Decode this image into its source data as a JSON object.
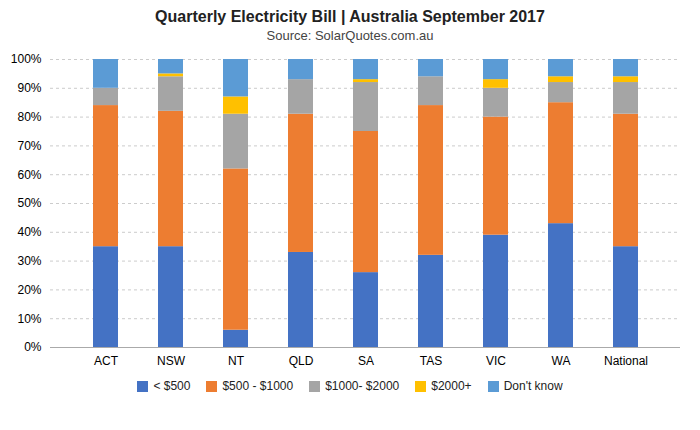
{
  "chart_data": {
    "type": "bar",
    "title": "Quarterly Electricity Bill | Australia September 2017",
    "subtitle": "Source: SolarQuotes.com.au",
    "categories": [
      "ACT",
      "NSW",
      "NT",
      "QLD",
      "SA",
      "TAS",
      "VIC",
      "WA",
      "National"
    ],
    "series": [
      {
        "name": "< $500",
        "color": "#4472C4",
        "values": [
          35,
          35,
          6,
          33,
          26,
          32,
          39,
          43,
          35
        ]
      },
      {
        "name": "$500 - $1000",
        "color": "#ED7D31",
        "values": [
          49,
          47,
          56,
          48,
          49,
          52,
          41,
          42,
          46
        ]
      },
      {
        "name": "$1000- $2000",
        "color": "#A5A5A5",
        "values": [
          6,
          12,
          19,
          12,
          17,
          10,
          10,
          7,
          11
        ]
      },
      {
        "name": "$2000+",
        "color": "#FFC000",
        "values": [
          0,
          1,
          6,
          0,
          1,
          0,
          3,
          2,
          2
        ]
      },
      {
        "name": "Don't know",
        "color": "#5B9BD5",
        "values": [
          10,
          5,
          13,
          7,
          7,
          6,
          7,
          6,
          6
        ]
      }
    ],
    "stacked": true,
    "ylim": [
      0,
      100
    ],
    "yticks": [
      {
        "value": 0,
        "label": "0%"
      },
      {
        "value": 10,
        "label": "10%"
      },
      {
        "value": 20,
        "label": "20%"
      },
      {
        "value": 30,
        "label": "30%"
      },
      {
        "value": 40,
        "label": "40%"
      },
      {
        "value": 50,
        "label": "50%"
      },
      {
        "value": 60,
        "label": "60%"
      },
      {
        "value": 70,
        "label": "70%"
      },
      {
        "value": 80,
        "label": "80%"
      },
      {
        "value": 90,
        "label": "90%"
      },
      {
        "value": 100,
        "label": "100%"
      }
    ],
    "grid": true,
    "legend": "bottom"
  }
}
